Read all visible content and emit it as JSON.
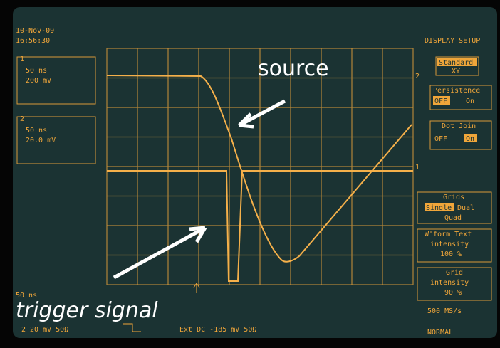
{
  "header": {
    "date": "10-Nov-09",
    "time": "16:56:30"
  },
  "channels": [
    {
      "number": "1",
      "timebase": "50 ns",
      "scale": "200 mV"
    },
    {
      "number": "2",
      "timebase": "50 ns",
      "scale": "20.0 mV"
    }
  ],
  "trace_markers": [
    "2",
    "1"
  ],
  "menu": {
    "title": "DISPLAY SETUP",
    "standard": "Standard",
    "xy": "XY",
    "persistence": {
      "label": "Persistence",
      "off": "OFF",
      "on": "On"
    },
    "dot_join": {
      "label": "Dot Join",
      "off": "OFF",
      "on": "On"
    },
    "grids": {
      "label": "Grids",
      "single": "Single",
      "dual": "Dual",
      "quad": "Quad"
    },
    "wform_text": {
      "label": "W'form Text",
      "sub": "intensity",
      "value": "100 %"
    },
    "grid_intensity": {
      "label": "Grid",
      "sub": "intensity",
      "value": "90 %"
    }
  },
  "footer": {
    "timebase": "50 ns",
    "ch2": "2  20 mV  50Ω",
    "trigger": "Ext  DC  -185 mV  50Ω",
    "rate": "500 MS/s",
    "mode": "NORMAL"
  },
  "annotations": {
    "source": "source",
    "trigger": "trigger signal"
  }
}
